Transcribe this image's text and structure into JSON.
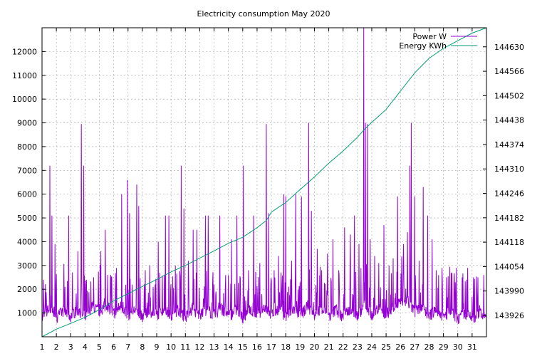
{
  "chart_data": {
    "type": "line",
    "title": "Electricity consumption May 2020",
    "grid": true,
    "legend_position": "top-right",
    "x_ticks": [
      "1",
      "2",
      "3",
      "4",
      "5",
      "6",
      "7",
      "8",
      "9",
      "10",
      "11",
      "12",
      "13",
      "14",
      "15",
      "16",
      "17",
      "18",
      "19",
      "20",
      "21",
      "22",
      "23",
      "24",
      "25",
      "26",
      "27",
      "28",
      "29",
      "30",
      "31"
    ],
    "y_ticks": [
      "1000",
      "2000",
      "3000",
      "4000",
      "5000",
      "6000",
      "7000",
      "8000",
      "9000",
      "10000",
      "11000",
      "12000"
    ],
    "y2_ticks": [
      "143926",
      "143990",
      "144054",
      "144118",
      "144182",
      "144246",
      "144310",
      "144374",
      "144438",
      "144502",
      "144566",
      "144630"
    ],
    "xlim": [
      1,
      32
    ],
    "ylim": [
      0,
      13000
    ],
    "y2lim": [
      143870,
      144680
    ],
    "colors": {
      "power": "#9400d3",
      "energy": "#009e73",
      "grid": "#a0a0a0"
    },
    "series": [
      {
        "name": "Power W",
        "axis": "y1",
        "baseline": [
          [
            1.0,
            800
          ],
          [
            1.5,
            1150
          ],
          [
            2.0,
            800
          ],
          [
            2.5,
            1100
          ],
          [
            3.0,
            850
          ],
          [
            3.5,
            1150
          ],
          [
            4.0,
            800
          ],
          [
            4.5,
            1300
          ],
          [
            5.0,
            1050
          ],
          [
            5.5,
            1350
          ],
          [
            6.0,
            950
          ],
          [
            6.5,
            1300
          ],
          [
            7.0,
            900
          ],
          [
            7.5,
            1150
          ],
          [
            8.0,
            800
          ],
          [
            8.5,
            1100
          ],
          [
            9.0,
            900
          ],
          [
            9.5,
            1200
          ],
          [
            10.0,
            850
          ],
          [
            10.5,
            1150
          ],
          [
            11.0,
            800
          ],
          [
            11.5,
            1150
          ],
          [
            12.0,
            850
          ],
          [
            12.5,
            1150
          ],
          [
            13.0,
            900
          ],
          [
            13.5,
            1200
          ],
          [
            14.0,
            850
          ],
          [
            14.5,
            1100
          ],
          [
            15.0,
            800
          ],
          [
            15.5,
            1100
          ],
          [
            16.0,
            850
          ],
          [
            16.5,
            1300
          ],
          [
            17.0,
            900
          ],
          [
            17.5,
            1200
          ],
          [
            18.0,
            850
          ],
          [
            18.5,
            1150
          ],
          [
            19.0,
            850
          ],
          [
            19.5,
            1250
          ],
          [
            20.0,
            900
          ],
          [
            20.5,
            1250
          ],
          [
            21.0,
            850
          ],
          [
            21.5,
            1150
          ],
          [
            22.0,
            800
          ],
          [
            22.5,
            1200
          ],
          [
            23.0,
            900
          ],
          [
            23.5,
            1300
          ],
          [
            24.0,
            900
          ],
          [
            24.5,
            1250
          ],
          [
            25.0,
            900
          ],
          [
            25.5,
            1300
          ],
          [
            26.0,
            1400
          ],
          [
            26.5,
            1500
          ],
          [
            27.0,
            1000
          ],
          [
            27.5,
            1300
          ],
          [
            28.0,
            850
          ],
          [
            28.5,
            1150
          ],
          [
            29.0,
            800
          ],
          [
            29.5,
            1100
          ],
          [
            30.0,
            750
          ],
          [
            30.5,
            1000
          ],
          [
            31.0,
            750
          ],
          [
            31.5,
            1000
          ],
          [
            32.0,
            800
          ]
        ],
        "peaks": [
          [
            1.1,
            2400
          ],
          [
            1.55,
            7200
          ],
          [
            1.7,
            5100
          ],
          [
            1.9,
            3900
          ],
          [
            2.6,
            2100
          ],
          [
            2.85,
            5100
          ],
          [
            3.5,
            3600
          ],
          [
            3.75,
            8950
          ],
          [
            3.9,
            7200
          ],
          [
            4.1,
            2400
          ],
          [
            4.6,
            2500
          ],
          [
            5.1,
            3600
          ],
          [
            5.4,
            4500
          ],
          [
            5.8,
            2600
          ],
          [
            6.2,
            2900
          ],
          [
            6.55,
            6000
          ],
          [
            6.95,
            6600
          ],
          [
            7.1,
            5200
          ],
          [
            7.6,
            6400
          ],
          [
            7.75,
            5500
          ],
          [
            8.2,
            2800
          ],
          [
            8.5,
            3000
          ],
          [
            8.75,
            2100
          ],
          [
            9.1,
            4000
          ],
          [
            9.6,
            5100
          ],
          [
            9.85,
            5100
          ],
          [
            10.3,
            3000
          ],
          [
            10.7,
            7200
          ],
          [
            10.9,
            5400
          ],
          [
            11.2,
            3200
          ],
          [
            11.55,
            4500
          ],
          [
            11.8,
            4500
          ],
          [
            12.4,
            5100
          ],
          [
            12.6,
            5100
          ],
          [
            13.0,
            2200
          ],
          [
            13.4,
            5100
          ],
          [
            13.8,
            2600
          ],
          [
            14.2,
            4100
          ],
          [
            14.6,
            5100
          ],
          [
            15.05,
            7200
          ],
          [
            15.4,
            2800
          ],
          [
            15.75,
            5100
          ],
          [
            16.2,
            3100
          ],
          [
            16.65,
            8950
          ],
          [
            16.8,
            5200
          ],
          [
            17.2,
            2800
          ],
          [
            17.5,
            3400
          ],
          [
            17.85,
            6000
          ],
          [
            18.0,
            5900
          ],
          [
            18.4,
            3200
          ],
          [
            18.7,
            6000
          ],
          [
            19.1,
            5900
          ],
          [
            19.6,
            9000
          ],
          [
            19.8,
            5300
          ],
          [
            20.2,
            3700
          ],
          [
            20.5,
            2800
          ],
          [
            20.9,
            3500
          ],
          [
            21.3,
            4100
          ],
          [
            21.7,
            2800
          ],
          [
            22.1,
            4600
          ],
          [
            22.5,
            4300
          ],
          [
            22.8,
            5100
          ],
          [
            23.1,
            3900
          ],
          [
            23.45,
            13000
          ],
          [
            23.55,
            9000
          ],
          [
            23.7,
            8950
          ],
          [
            23.9,
            4100
          ],
          [
            24.2,
            3400
          ],
          [
            24.5,
            3100
          ],
          [
            24.85,
            4700
          ],
          [
            25.2,
            3000
          ],
          [
            25.5,
            3300
          ],
          [
            25.8,
            5900
          ],
          [
            26.2,
            3900
          ],
          [
            26.5,
            4400
          ],
          [
            26.65,
            7200
          ],
          [
            26.75,
            9000
          ],
          [
            27.0,
            5900
          ],
          [
            27.3,
            3200
          ],
          [
            27.6,
            6300
          ],
          [
            27.9,
            5100
          ],
          [
            28.2,
            4100
          ],
          [
            28.5,
            2800
          ],
          [
            28.9,
            2900
          ],
          [
            29.2,
            2500
          ],
          [
            29.6,
            2700
          ],
          [
            29.9,
            2900
          ],
          [
            30.3,
            2500
          ],
          [
            30.7,
            2900
          ],
          [
            31.1,
            2500
          ],
          [
            31.4,
            2500
          ],
          [
            31.8,
            2600
          ]
        ]
      },
      {
        "name": "Energy KWh",
        "axis": "y2",
        "points": [
          [
            1.0,
            143870
          ],
          [
            2.0,
            143890
          ],
          [
            3.0,
            143905
          ],
          [
            4.0,
            143921
          ],
          [
            5.0,
            143941
          ],
          [
            6.0,
            143964
          ],
          [
            7.0,
            143983
          ],
          [
            8.0,
            144002
          ],
          [
            9.0,
            144020
          ],
          [
            10.0,
            144040
          ],
          [
            11.0,
            144057
          ],
          [
            12.0,
            144076
          ],
          [
            13.0,
            144095
          ],
          [
            14.0,
            144115
          ],
          [
            15.0,
            144131
          ],
          [
            16.0,
            144156
          ],
          [
            16.65,
            144175
          ],
          [
            17.0,
            144197
          ],
          [
            18.0,
            144222
          ],
          [
            19.0,
            144256
          ],
          [
            20.0,
            144289
          ],
          [
            21.0,
            144325
          ],
          [
            22.0,
            144357
          ],
          [
            23.0,
            144393
          ],
          [
            23.5,
            144414
          ],
          [
            24.0,
            144432
          ],
          [
            25.0,
            144466
          ],
          [
            26.0,
            144514
          ],
          [
            27.0,
            144562
          ],
          [
            28.0,
            144600
          ],
          [
            29.0,
            144626
          ],
          [
            30.0,
            144646
          ],
          [
            31.0,
            144666
          ],
          [
            32.0,
            144680
          ]
        ]
      }
    ]
  }
}
